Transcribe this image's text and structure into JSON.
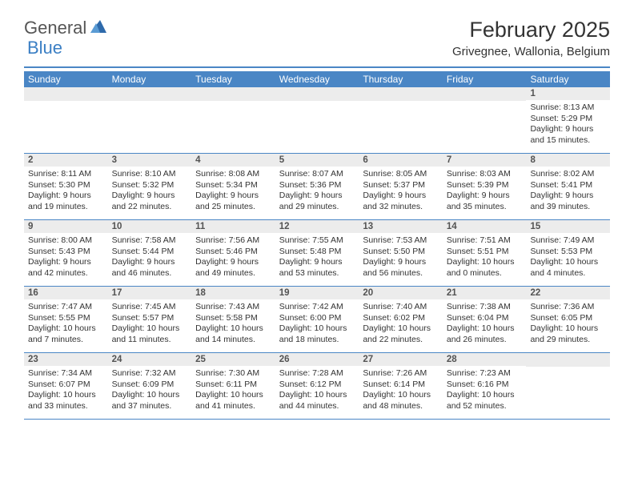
{
  "brand": {
    "word1": "General",
    "word2": "Blue",
    "word1_color": "#555555",
    "word2_color": "#3b7fc4"
  },
  "title": "February 2025",
  "location": "Grivegnee, Wallonia, Belgium",
  "colors": {
    "header_bar": "#4a86c5",
    "daynum_bg": "#ececec",
    "daynum_text": "#535353",
    "divider": "#4a86c5",
    "body_text": "#333333",
    "header_text": "#ffffff"
  },
  "day_headers": [
    "Sunday",
    "Monday",
    "Tuesday",
    "Wednesday",
    "Thursday",
    "Friday",
    "Saturday"
  ],
  "weeks": [
    [
      null,
      null,
      null,
      null,
      null,
      null,
      {
        "n": "1",
        "sunrise": "8:13 AM",
        "sunset": "5:29 PM",
        "daylight": "9 hours and 15 minutes."
      }
    ],
    [
      {
        "n": "2",
        "sunrise": "8:11 AM",
        "sunset": "5:30 PM",
        "daylight": "9 hours and 19 minutes."
      },
      {
        "n": "3",
        "sunrise": "8:10 AM",
        "sunset": "5:32 PM",
        "daylight": "9 hours and 22 minutes."
      },
      {
        "n": "4",
        "sunrise": "8:08 AM",
        "sunset": "5:34 PM",
        "daylight": "9 hours and 25 minutes."
      },
      {
        "n": "5",
        "sunrise": "8:07 AM",
        "sunset": "5:36 PM",
        "daylight": "9 hours and 29 minutes."
      },
      {
        "n": "6",
        "sunrise": "8:05 AM",
        "sunset": "5:37 PM",
        "daylight": "9 hours and 32 minutes."
      },
      {
        "n": "7",
        "sunrise": "8:03 AM",
        "sunset": "5:39 PM",
        "daylight": "9 hours and 35 minutes."
      },
      {
        "n": "8",
        "sunrise": "8:02 AM",
        "sunset": "5:41 PM",
        "daylight": "9 hours and 39 minutes."
      }
    ],
    [
      {
        "n": "9",
        "sunrise": "8:00 AM",
        "sunset": "5:43 PM",
        "daylight": "9 hours and 42 minutes."
      },
      {
        "n": "10",
        "sunrise": "7:58 AM",
        "sunset": "5:44 PM",
        "daylight": "9 hours and 46 minutes."
      },
      {
        "n": "11",
        "sunrise": "7:56 AM",
        "sunset": "5:46 PM",
        "daylight": "9 hours and 49 minutes."
      },
      {
        "n": "12",
        "sunrise": "7:55 AM",
        "sunset": "5:48 PM",
        "daylight": "9 hours and 53 minutes."
      },
      {
        "n": "13",
        "sunrise": "7:53 AM",
        "sunset": "5:50 PM",
        "daylight": "9 hours and 56 minutes."
      },
      {
        "n": "14",
        "sunrise": "7:51 AM",
        "sunset": "5:51 PM",
        "daylight": "10 hours and 0 minutes."
      },
      {
        "n": "15",
        "sunrise": "7:49 AM",
        "sunset": "5:53 PM",
        "daylight": "10 hours and 4 minutes."
      }
    ],
    [
      {
        "n": "16",
        "sunrise": "7:47 AM",
        "sunset": "5:55 PM",
        "daylight": "10 hours and 7 minutes."
      },
      {
        "n": "17",
        "sunrise": "7:45 AM",
        "sunset": "5:57 PM",
        "daylight": "10 hours and 11 minutes."
      },
      {
        "n": "18",
        "sunrise": "7:43 AM",
        "sunset": "5:58 PM",
        "daylight": "10 hours and 14 minutes."
      },
      {
        "n": "19",
        "sunrise": "7:42 AM",
        "sunset": "6:00 PM",
        "daylight": "10 hours and 18 minutes."
      },
      {
        "n": "20",
        "sunrise": "7:40 AM",
        "sunset": "6:02 PM",
        "daylight": "10 hours and 22 minutes."
      },
      {
        "n": "21",
        "sunrise": "7:38 AM",
        "sunset": "6:04 PM",
        "daylight": "10 hours and 26 minutes."
      },
      {
        "n": "22",
        "sunrise": "7:36 AM",
        "sunset": "6:05 PM",
        "daylight": "10 hours and 29 minutes."
      }
    ],
    [
      {
        "n": "23",
        "sunrise": "7:34 AM",
        "sunset": "6:07 PM",
        "daylight": "10 hours and 33 minutes."
      },
      {
        "n": "24",
        "sunrise": "7:32 AM",
        "sunset": "6:09 PM",
        "daylight": "10 hours and 37 minutes."
      },
      {
        "n": "25",
        "sunrise": "7:30 AM",
        "sunset": "6:11 PM",
        "daylight": "10 hours and 41 minutes."
      },
      {
        "n": "26",
        "sunrise": "7:28 AM",
        "sunset": "6:12 PM",
        "daylight": "10 hours and 44 minutes."
      },
      {
        "n": "27",
        "sunrise": "7:26 AM",
        "sunset": "6:14 PM",
        "daylight": "10 hours and 48 minutes."
      },
      {
        "n": "28",
        "sunrise": "7:23 AM",
        "sunset": "6:16 PM",
        "daylight": "10 hours and 52 minutes."
      },
      null
    ]
  ],
  "labels": {
    "sunrise": "Sunrise:",
    "sunset": "Sunset:",
    "daylight": "Daylight:"
  }
}
